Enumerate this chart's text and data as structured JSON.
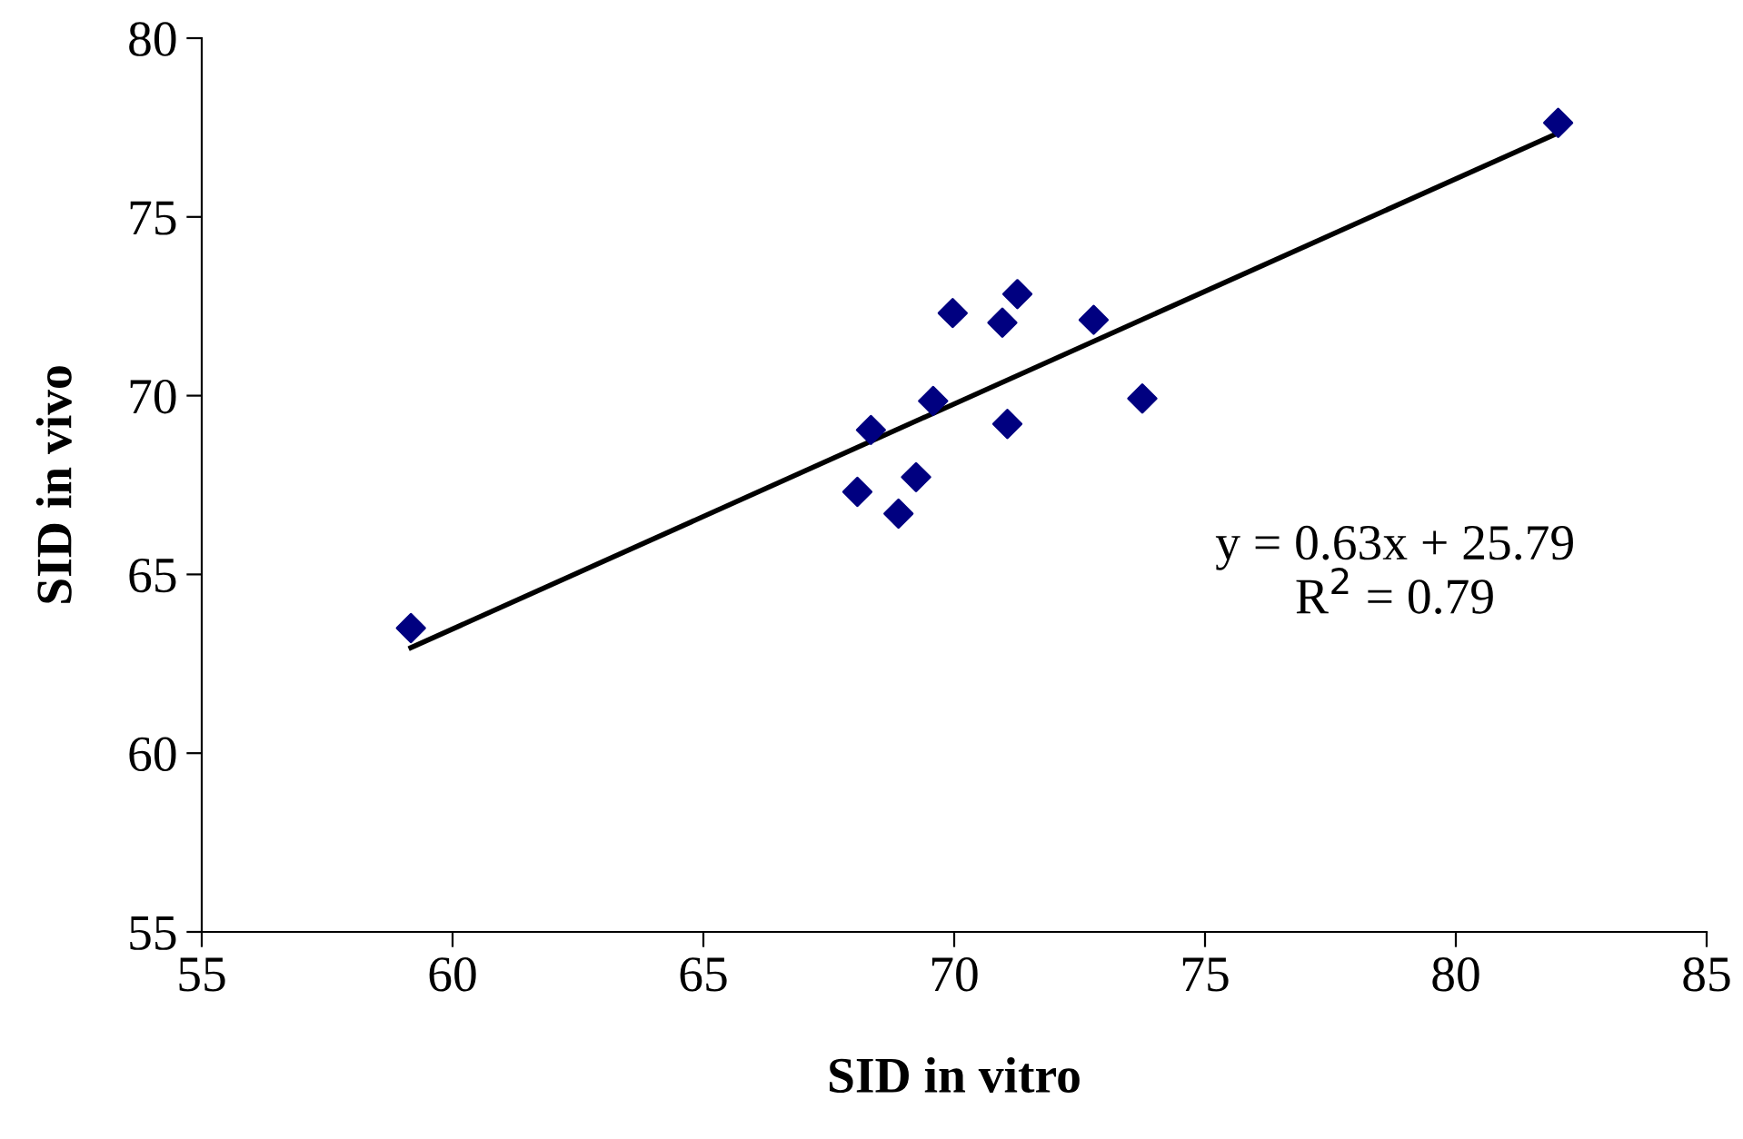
{
  "chart_data": {
    "type": "scatter",
    "xlabel": "SID in vitro",
    "ylabel": "SID in vivo",
    "series": [
      {
        "color": "#000080",
        "marker": "diamond",
        "x": [
          59.17,
          68.34,
          68.07,
          68.89,
          69.24,
          69.58,
          69.97,
          70.96,
          71.26,
          71.06,
          72.78,
          73.75,
          82.04
        ],
        "values": [
          63.5,
          69.04,
          67.31,
          66.7,
          67.72,
          69.85,
          72.31,
          72.04,
          72.84,
          69.21,
          72.12,
          69.92,
          77.63
        ]
      },
      {
        "type": "line",
        "color": "#000000",
        "marker": "none",
        "x": [
          59.17,
          82.04
        ],
        "values": [
          62.95,
          77.35
        ]
      }
    ],
    "annotations": [
      "y = 0.63x + 25.79\nR$^{2}$ = 0.79"
    ],
    "xlim": [
      55,
      85
    ],
    "xticks": [
      55,
      60,
      65,
      70,
      75,
      80,
      85
    ],
    "ylim": [
      55,
      80
    ],
    "yticks": [
      55,
      60,
      65,
      70,
      75,
      80
    ],
    "grid": false,
    "legend": false
  }
}
